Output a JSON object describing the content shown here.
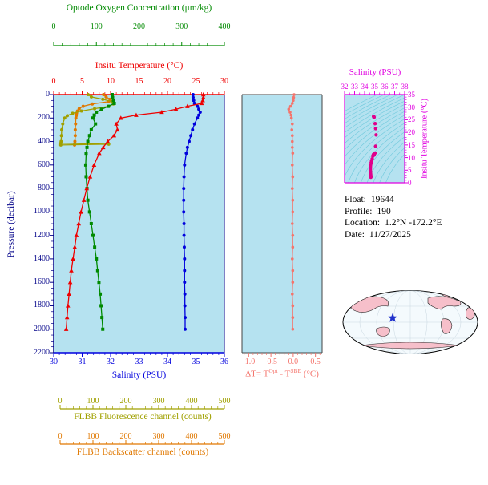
{
  "figure": {
    "bg_color": "#ffffff",
    "plot_bg": "#b5e2f0"
  },
  "axes": {
    "oxygen": {
      "title": "Optode Oxygen Concentration (μm/kg)",
      "range": [
        0,
        400
      ],
      "ticks": [
        0,
        100,
        200,
        300,
        400
      ],
      "color": "#008a00"
    },
    "temperature": {
      "title": "Insitu Temperature (°C)",
      "range": [
        0,
        30
      ],
      "ticks": [
        0,
        5,
        10,
        15,
        20,
        25,
        30
      ],
      "color": "#ee0000"
    },
    "pressure": {
      "title": "Pressure (decibar)",
      "range": [
        0,
        2200
      ],
      "ticks": [
        0,
        200,
        400,
        600,
        800,
        1000,
        1200,
        1400,
        1600,
        1800,
        2000,
        2200
      ],
      "color": "#000088"
    },
    "salinity": {
      "title": "Salinity (PSU)",
      "range": [
        30,
        36
      ],
      "ticks": [
        30,
        31,
        32,
        33,
        34,
        35,
        36
      ],
      "color": "#0000dd"
    },
    "fluorescence": {
      "title": "FLBB Fluorescence channel (counts)",
      "range": [
        0,
        500
      ],
      "ticks": [
        0,
        100,
        200,
        300,
        400,
        500
      ],
      "color": "#a0a000"
    },
    "backscatter": {
      "title": "FLBB Backscatter channel (counts)",
      "range": [
        0,
        500
      ],
      "ticks": [
        0,
        100,
        200,
        300,
        400,
        500
      ],
      "color": "#e07800"
    },
    "delta_t": {
      "title_parts": {
        "prefix": "ΔT= T",
        "sup1": "Opt",
        "mid": " - T",
        "sup2": "SBE",
        "suffix": " (°C)"
      },
      "range": [
        -1.15,
        0.65
      ],
      "ticks": [
        "-1.0",
        "-0.5",
        "0.0",
        "0.5"
      ],
      "tick_values": [
        -1.0,
        -0.5,
        0.0,
        0.5
      ],
      "color": "#f4746c"
    },
    "ts_salinity": {
      "title": "Salinity (PSU)",
      "range": [
        32,
        38
      ],
      "ticks": [
        32,
        33,
        34,
        35,
        36,
        37,
        38
      ],
      "color": "#e000e0"
    },
    "ts_temperature": {
      "title": "Insitu Temperature (°C)",
      "range": [
        0,
        35
      ],
      "ticks": [
        0,
        5,
        10,
        15,
        20,
        25,
        30,
        35
      ],
      "color": "#e000e0"
    }
  },
  "info": {
    "rows": [
      {
        "label": "Float:",
        "value": "19644"
      },
      {
        "label": "Profile:",
        "value": "190"
      },
      {
        "label": "Location:",
        "value": "1.2°N  -172.2°E"
      },
      {
        "label": "Date:",
        "value": "11/27/2025"
      }
    ]
  },
  "map": {
    "land_color": "#f6bfca",
    "ocean_color": "#f4fafd",
    "star_color": "#2233cc"
  },
  "chart_data": [
    {
      "id": "profile-plot",
      "type": "line",
      "ylabel": "Pressure (decibar)",
      "ylim": [
        0,
        2200
      ],
      "grid": false,
      "pressure": [
        0,
        25,
        50,
        75,
        100,
        125,
        150,
        175,
        200,
        250,
        300,
        350,
        400,
        450,
        500,
        600,
        700,
        800,
        900,
        1000,
        1100,
        1200,
        1300,
        1400,
        1500,
        1600,
        1700,
        1800,
        1900,
        2000
      ],
      "series": [
        {
          "name": "Insitu Temperature",
          "units": "°C",
          "axis": "temperature",
          "marker": "triangle",
          "color": "#ee0000",
          "values": [
            26.3,
            26.3,
            26.2,
            26.0,
            23.5,
            21.5,
            19.0,
            14.5,
            11.8,
            11.0,
            11.2,
            10.6,
            9.5,
            8.7,
            8.0,
            7.1,
            6.4,
            5.8,
            5.3,
            4.8,
            4.4,
            4.0,
            3.7,
            3.4,
            3.1,
            2.9,
            2.7,
            2.5,
            2.35,
            2.2
          ]
        },
        {
          "name": "Salinity",
          "units": "PSU",
          "axis": "salinity",
          "marker": "circle",
          "color": "#0000dd",
          "values": [
            34.9,
            34.9,
            34.92,
            34.95,
            35.05,
            35.1,
            35.15,
            35.1,
            35.05,
            34.95,
            34.88,
            34.82,
            34.76,
            34.7,
            34.66,
            34.6,
            34.58,
            34.57,
            34.57,
            34.57,
            34.58,
            34.58,
            34.59,
            34.6,
            34.6,
            34.6,
            34.61,
            34.61,
            34.62,
            34.62
          ]
        },
        {
          "name": "Optode Oxygen Concentration",
          "units": "μm/kg",
          "axis": "oxygen",
          "marker": "square",
          "color": "#008a00",
          "values": [
            137,
            138,
            140,
            142,
            128,
            112,
            100,
            95,
            92,
            98,
            88,
            84,
            80,
            78,
            76,
            75,
            76,
            78,
            80,
            84,
            88,
            92,
            96,
            100,
            103,
            106,
            109,
            111,
            113,
            115
          ]
        },
        {
          "name": "FLBB Fluorescence channel",
          "units": "counts",
          "axis": "fluorescence",
          "marker": "circle",
          "color": "#a0a000",
          "pressure": [
            0,
            20,
            40,
            60,
            80,
            100,
            120,
            140,
            160,
            180,
            200,
            250,
            300,
            350,
            400,
            415,
            423,
            430
          ],
          "values": [
            85,
            95,
            130,
            158,
            162,
            148,
            105,
            65,
            38,
            22,
            14,
            8,
            5,
            4,
            3,
            2,
            148,
            2
          ]
        },
        {
          "name": "FLBB Backscatter channel",
          "units": "counts",
          "axis": "backscatter",
          "marker": "circle",
          "color": "#e07800",
          "pressure": [
            0,
            20,
            40,
            60,
            80,
            100,
            120,
            140,
            160,
            180,
            200,
            250,
            300,
            350,
            400,
            430
          ],
          "values": [
            132,
            140,
            152,
            148,
            98,
            70,
            58,
            53,
            50,
            49,
            48,
            47,
            46,
            46,
            45,
            44
          ]
        }
      ]
    },
    {
      "id": "temp-difference-plot",
      "type": "scatter",
      "xlabel": "ΔT= TOpt - TSBE (°C)",
      "xlim": [
        -1.15,
        0.65
      ],
      "ylim": [
        0,
        2200
      ],
      "color": "#f4746c",
      "pressure": [
        0,
        25,
        50,
        75,
        100,
        125,
        150,
        175,
        200,
        250,
        300,
        350,
        400,
        450,
        500,
        600,
        700,
        800,
        900,
        1000,
        1100,
        1200,
        1300,
        1400,
        1500,
        1600,
        1700,
        1800,
        1900,
        2000
      ],
      "values": [
        0.02,
        0.01,
        0.0,
        -0.02,
        -0.06,
        -0.1,
        -0.07,
        -0.05,
        -0.04,
        -0.02,
        -0.03,
        -0.02,
        -0.02,
        -0.02,
        -0.01,
        -0.02,
        -0.01,
        -0.02,
        -0.01,
        -0.01,
        -0.02,
        -0.01,
        -0.01,
        -0.02,
        -0.01,
        -0.01,
        -0.02,
        -0.01,
        -0.01,
        -0.01
      ]
    },
    {
      "id": "ts-diagram",
      "type": "scatter",
      "xlabel": "Salinity (PSU)",
      "ylabel": "Insitu Temperature (°C)",
      "xlim": [
        32,
        38
      ],
      "ylim": [
        0,
        35
      ],
      "color": "#e0008c"
    }
  ]
}
